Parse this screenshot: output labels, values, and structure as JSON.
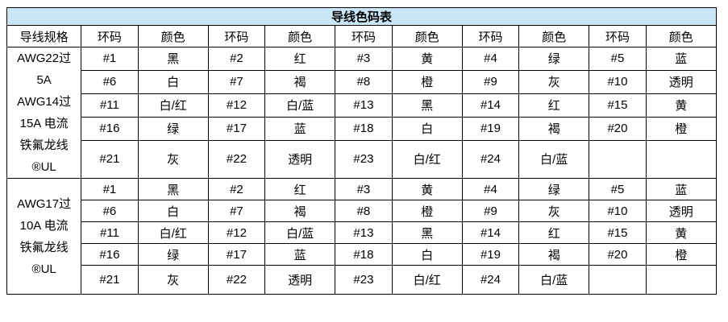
{
  "title": "导线色码表",
  "colors": {
    "title_bg": "#CBE7F7",
    "border": "#000000",
    "cell_bg": "#FFFFFF",
    "text": "#000000"
  },
  "header": {
    "spec_label": "导线规格",
    "ring_label": "环码",
    "color_label": "颜色",
    "pair_count": 5
  },
  "sections": [
    {
      "spec": "AWG22过\n5A\nAWG14过\n15A 电流\n铁氟龙线\n®UL",
      "rows": [
        [
          {
            "ring": "#1",
            "color": "黑"
          },
          {
            "ring": "#2",
            "color": "红"
          },
          {
            "ring": "#3",
            "color": "黄"
          },
          {
            "ring": "#4",
            "color": "绿"
          },
          {
            "ring": "#5",
            "color": "蓝"
          }
        ],
        [
          {
            "ring": "#6",
            "color": "白"
          },
          {
            "ring": "#7",
            "color": "褐"
          },
          {
            "ring": "#8",
            "color": "橙"
          },
          {
            "ring": "#9",
            "color": "灰"
          },
          {
            "ring": "#10",
            "color": "透明"
          }
        ],
        [
          {
            "ring": "#11",
            "color": "白/红"
          },
          {
            "ring": "#12",
            "color": "白/蓝"
          },
          {
            "ring": "#13",
            "color": "黑"
          },
          {
            "ring": "#14",
            "color": "红"
          },
          {
            "ring": "#15",
            "color": "黄"
          }
        ],
        [
          {
            "ring": "#16",
            "color": "绿"
          },
          {
            "ring": "#17",
            "color": "蓝"
          },
          {
            "ring": "#18",
            "color": "白"
          },
          {
            "ring": "#19",
            "color": "褐"
          },
          {
            "ring": "#20",
            "color": "橙"
          }
        ],
        [
          {
            "ring": "#21",
            "color": "灰"
          },
          {
            "ring": "#22",
            "color": "透明"
          },
          {
            "ring": "#23",
            "color": "白/红"
          },
          {
            "ring": "#24",
            "color": "白/蓝"
          },
          {
            "ring": "",
            "color": ""
          }
        ]
      ]
    },
    {
      "spec": "AWG17过\n10A 电流\n铁氟龙线\n®UL",
      "rows": [
        [
          {
            "ring": "#1",
            "color": "黑"
          },
          {
            "ring": "#2",
            "color": "红"
          },
          {
            "ring": "#3",
            "color": "黄"
          },
          {
            "ring": "#4",
            "color": "绿"
          },
          {
            "ring": "#5",
            "color": "蓝"
          }
        ],
        [
          {
            "ring": "#6",
            "color": "白"
          },
          {
            "ring": "#7",
            "color": "褐"
          },
          {
            "ring": "#8",
            "color": "橙"
          },
          {
            "ring": "#9",
            "color": "灰"
          },
          {
            "ring": "#10",
            "color": "透明"
          }
        ],
        [
          {
            "ring": "#11",
            "color": "白/红"
          },
          {
            "ring": "#12",
            "color": "白/蓝"
          },
          {
            "ring": "#13",
            "color": "黑"
          },
          {
            "ring": "#14",
            "color": "红"
          },
          {
            "ring": "#15",
            "color": "黄"
          }
        ],
        [
          {
            "ring": "#16",
            "color": "绿"
          },
          {
            "ring": "#17",
            "color": "蓝"
          },
          {
            "ring": "#18",
            "color": "白"
          },
          {
            "ring": "#19",
            "color": "褐"
          },
          {
            "ring": "#20",
            "color": "橙"
          }
        ],
        [
          {
            "ring": "#21",
            "color": "灰"
          },
          {
            "ring": "#22",
            "color": "透明"
          },
          {
            "ring": "#23",
            "color": "白/红"
          },
          {
            "ring": "#24",
            "color": "白/蓝"
          },
          {
            "ring": "",
            "color": ""
          }
        ]
      ]
    }
  ]
}
